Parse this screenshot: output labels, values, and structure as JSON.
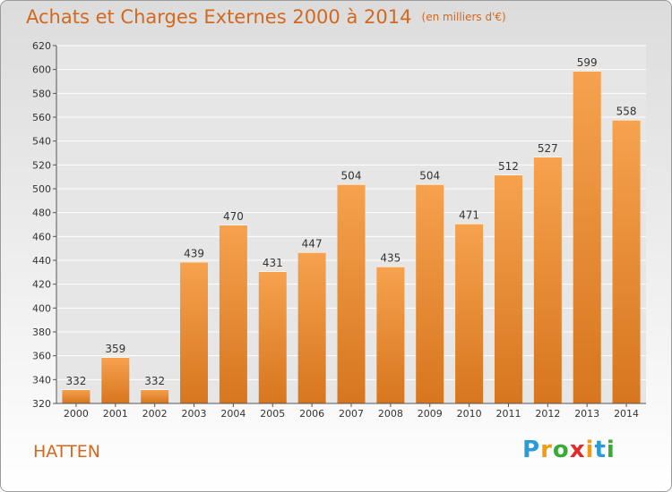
{
  "title": "Achats et Charges Externes 2000 à 2014",
  "unit": "(en milliers d'€)",
  "commune": "HATTEN",
  "logo": {
    "p": "P",
    "r": "r",
    "o": "o",
    "x": "x",
    "i1": "i",
    "t": "t",
    "i2": "i"
  },
  "colors": {
    "bar_light": "#f6a24e",
    "bar_dark": "#d7761e",
    "text_accent": "#d2691e",
    "grid": "#ffffff"
  },
  "chart_data": {
    "type": "bar",
    "title": "Achats et Charges Externes 2000 à 2014",
    "subtitle": "(en milliers d'€)",
    "categories": [
      "2000",
      "2001",
      "2002",
      "2003",
      "2004",
      "2005",
      "2006",
      "2007",
      "2008",
      "2009",
      "2010",
      "2011",
      "2012",
      "2013",
      "2014"
    ],
    "values": [
      332,
      359,
      332,
      439,
      470,
      431,
      447,
      504,
      435,
      504,
      471,
      512,
      527,
      599,
      558
    ],
    "ylim": [
      320,
      620
    ],
    "yticks": [
      320,
      340,
      360,
      380,
      400,
      420,
      440,
      460,
      480,
      500,
      520,
      540,
      560,
      580,
      600,
      620
    ],
    "grid": true
  }
}
